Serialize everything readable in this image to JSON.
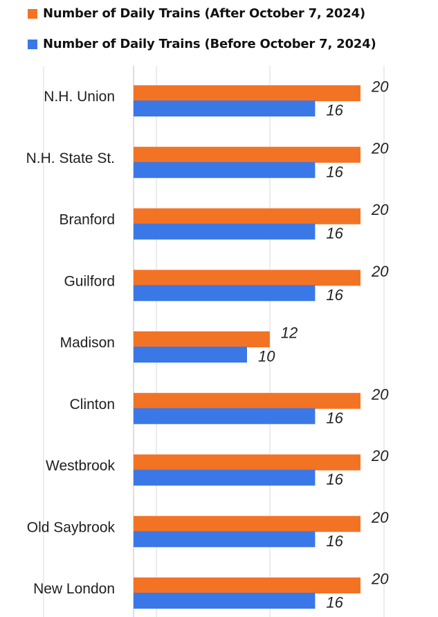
{
  "chart_data": {
    "type": "bar",
    "orientation": "horizontal",
    "categories": [
      "N.H. Union",
      "N.H. State St.",
      "Branford",
      "Guilford",
      "Madison",
      "Clinton",
      "Westbrook",
      "Old Saybrook",
      "New London"
    ],
    "series": [
      {
        "name": "Number of Daily Trains (After October 7, 2024)",
        "color": "#f37325",
        "values": [
          20,
          20,
          20,
          20,
          12,
          20,
          20,
          20,
          20
        ]
      },
      {
        "name": "Number of Daily Trains (Before October 7, 2024)",
        "color": "#3b78e7",
        "values": [
          16,
          16,
          16,
          16,
          10,
          16,
          16,
          16,
          16
        ]
      }
    ],
    "xlim": [
      0,
      20
    ],
    "grid": true,
    "legend_position": "top-left"
  }
}
